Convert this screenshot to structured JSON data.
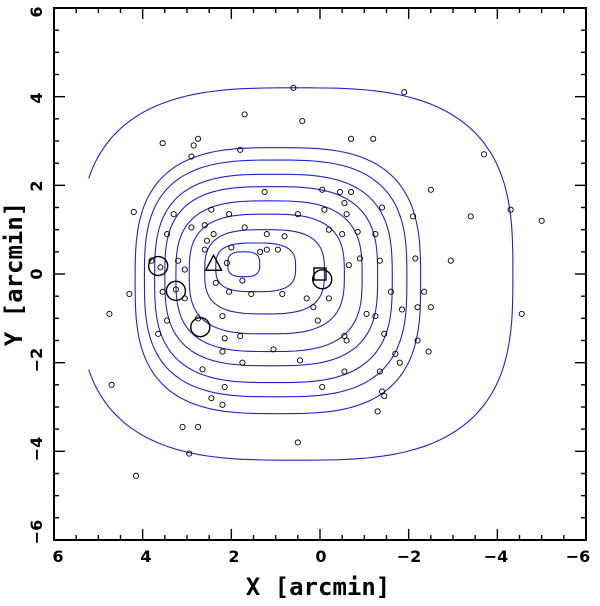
{
  "chart_data": {
    "type": "scatter",
    "title": "",
    "xlabel": "X [arcmin]",
    "ylabel": "Y [arcmin]",
    "xlim": [
      6,
      -6
    ],
    "ylim": [
      -6,
      6
    ],
    "x_ticks": [
      "6",
      "4",
      "2",
      "0",
      "−2",
      "−4",
      "−6"
    ],
    "y_ticks": [
      "−6",
      "−4",
      "−2",
      "0",
      "2",
      "4",
      "6"
    ],
    "grid": false,
    "legend": "none",
    "contour_color": "#2222cc",
    "marker_color": "#000000",
    "contours": [
      {
        "cx": 1.72,
        "cy": 0.22,
        "rx": 0.36,
        "ry": 0.28,
        "peak_x": 2.0
      },
      {
        "cx": 1.45,
        "cy": 0.15,
        "rx": 0.9,
        "ry": 0.55,
        "peak_x": 2.2
      },
      {
        "cx": 1.25,
        "cy": 0.05,
        "rx": 1.35,
        "ry": 0.95
      },
      {
        "cx": 1.2,
        "cy": 0.0,
        "rx": 1.75,
        "ry": 1.35
      },
      {
        "cx": 1.15,
        "cy": -0.05,
        "rx": 2.1,
        "ry": 1.7
      },
      {
        "cx": 1.1,
        "cy": -0.05,
        "rx": 2.4,
        "ry": 2.02
      },
      {
        "cx": 1.05,
        "cy": -0.1,
        "rx": 2.68,
        "ry": 2.35
      },
      {
        "cx": 1.0,
        "cy": -0.1,
        "rx": 2.96,
        "ry": 2.67
      },
      {
        "cx": 0.95,
        "cy": -0.15,
        "rx": 3.22,
        "ry": 3.0
      },
      {
        "cx": 0.55,
        "cy": 0.0,
        "rx": 4.9,
        "ry": 4.2,
        "open": true
      }
    ],
    "points": [
      [
        0.6,
        4.2
      ],
      [
        -1.9,
        4.1
      ],
      [
        1.7,
        3.6
      ],
      [
        0.4,
        3.45
      ],
      [
        -3.7,
        2.7
      ],
      [
        2.75,
        3.05
      ],
      [
        2.85,
        2.9
      ],
      [
        -0.7,
        3.05
      ],
      [
        -1.2,
        3.05
      ],
      [
        1.8,
        2.8
      ],
      [
        3.55,
        2.95
      ],
      [
        2.9,
        2.65
      ],
      [
        -2.5,
        1.9
      ],
      [
        -4.3,
        1.45
      ],
      [
        -5.0,
        1.2
      ],
      [
        4.2,
        1.4
      ],
      [
        3.3,
        1.35
      ],
      [
        1.25,
        1.85
      ],
      [
        -0.05,
        1.9
      ],
      [
        -0.45,
        1.85
      ],
      [
        -0.7,
        1.85
      ],
      [
        -0.55,
        1.6
      ],
      [
        -1.4,
        1.5
      ],
      [
        2.45,
        1.45
      ],
      [
        2.05,
        1.35
      ],
      [
        0.5,
        1.35
      ],
      [
        -0.1,
        1.45
      ],
      [
        -0.6,
        1.35
      ],
      [
        -2.1,
        1.3
      ],
      [
        -3.4,
        1.3
      ],
      [
        2.6,
        1.1
      ],
      [
        2.9,
        1.05
      ],
      [
        1.7,
        1.05
      ],
      [
        0.8,
        0.85
      ],
      [
        -0.2,
        1.0
      ],
      [
        -0.85,
        0.95
      ],
      [
        -1.25,
        0.9
      ],
      [
        3.45,
        0.9
      ],
      [
        2.55,
        0.75
      ],
      [
        2.4,
        0.9
      ],
      [
        1.2,
        0.9
      ],
      [
        -0.5,
        0.9
      ],
      [
        2.0,
        0.6
      ],
      [
        1.2,
        0.55
      ],
      [
        0.95,
        0.55
      ],
      [
        1.35,
        0.5
      ],
      [
        2.6,
        0.55
      ],
      [
        3.2,
        0.3
      ],
      [
        3.8,
        0.3
      ],
      [
        -0.9,
        0.35
      ],
      [
        -2.15,
        0.35
      ],
      [
        -2.95,
        0.3
      ],
      [
        -1.35,
        0.3
      ],
      [
        3.05,
        0.1
      ],
      [
        3.6,
        0.15
      ],
      [
        3.25,
        -0.35
      ],
      [
        2.1,
        0.25
      ],
      [
        -0.65,
        0.2
      ],
      [
        3.55,
        -0.4
      ],
      [
        4.3,
        -0.45
      ],
      [
        2.35,
        -0.2
      ],
      [
        1.75,
        -0.15
      ],
      [
        3.05,
        -0.55
      ],
      [
        2.05,
        -0.4
      ],
      [
        1.55,
        -0.45
      ],
      [
        0.85,
        -0.45
      ],
      [
        -1.6,
        -0.4
      ],
      [
        -2.35,
        -0.4
      ],
      [
        0.3,
        -0.55
      ],
      [
        0.15,
        -0.75
      ],
      [
        -0.2,
        -0.55
      ],
      [
        -2.2,
        -0.75
      ],
      [
        -1.85,
        -0.8
      ],
      [
        -2.5,
        -0.75
      ],
      [
        -1.05,
        -0.9
      ],
      [
        -1.25,
        -0.95
      ],
      [
        3.45,
        -1.05
      ],
      [
        2.75,
        -1.0
      ],
      [
        2.2,
        -0.95
      ],
      [
        4.75,
        -0.9
      ],
      [
        -4.55,
        -0.9
      ],
      [
        0.05,
        -1.05
      ],
      [
        3.65,
        -1.35
      ],
      [
        2.15,
        -1.45
      ],
      [
        1.8,
        -1.4
      ],
      [
        -0.55,
        -1.4
      ],
      [
        -0.6,
        -1.5
      ],
      [
        -1.45,
        -1.35
      ],
      [
        -2.2,
        -1.5
      ],
      [
        2.2,
        -1.75
      ],
      [
        1.05,
        -1.7
      ],
      [
        0.45,
        -1.95
      ],
      [
        -1.7,
        -1.8
      ],
      [
        -2.45,
        -1.75
      ],
      [
        1.75,
        -2.0
      ],
      [
        -1.8,
        -2.0
      ],
      [
        2.65,
        -2.15
      ],
      [
        -1.35,
        -2.2
      ],
      [
        -0.55,
        -2.2
      ],
      [
        2.15,
        -2.55
      ],
      [
        -0.05,
        -2.55
      ],
      [
        4.7,
        -2.5
      ],
      [
        -1.4,
        -2.65
      ],
      [
        -1.45,
        -2.75
      ],
      [
        2.45,
        -2.8
      ],
      [
        2.2,
        -2.95
      ],
      [
        -1.3,
        -3.1
      ],
      [
        3.1,
        -3.45
      ],
      [
        2.75,
        -3.45
      ],
      [
        0.5,
        -3.8
      ],
      [
        2.95,
        -4.05
      ],
      [
        4.15,
        -4.55
      ]
    ],
    "circles": [
      [
        3.65,
        0.18
      ],
      [
        3.25,
        -0.38
      ],
      [
        2.7,
        -1.2
      ],
      [
        -0.05,
        -0.12
      ]
    ],
    "triangle": [
      2.4,
      0.22
    ],
    "square": [
      0.0,
      0.0
    ]
  }
}
